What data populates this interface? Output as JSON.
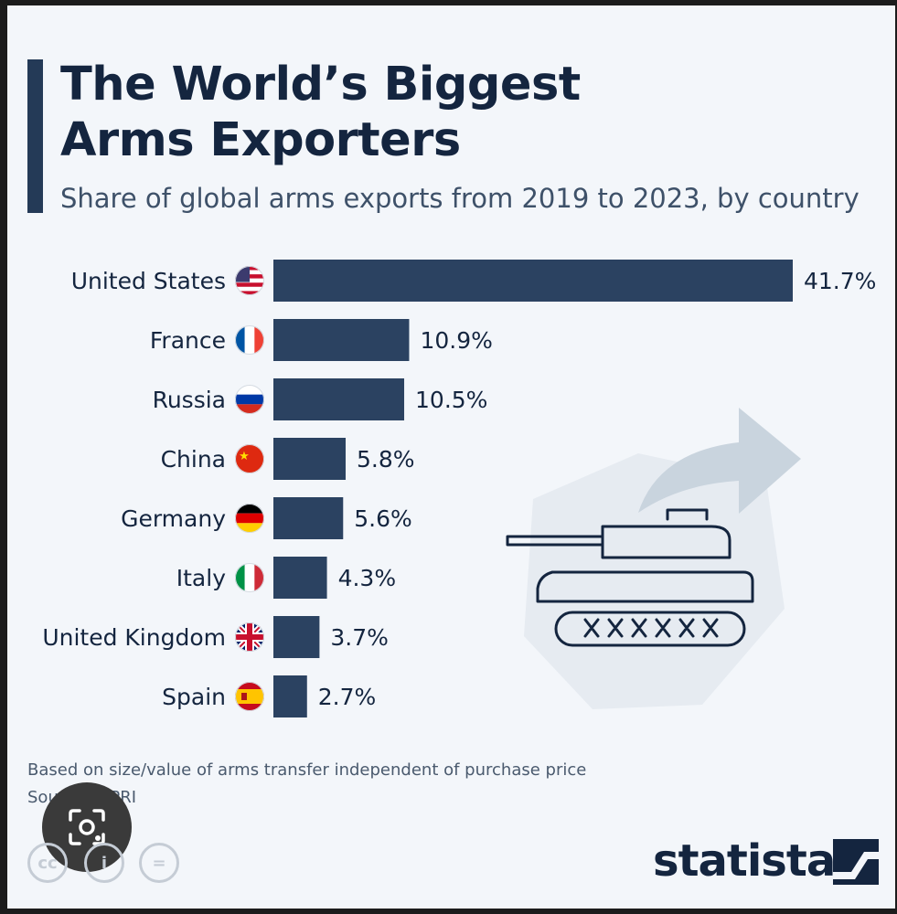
{
  "header": {
    "title_line1": "The World’s Biggest",
    "title_line2": "Arms Exporters",
    "subtitle": "Share of global arms exports from 2019 to 2023, by country"
  },
  "chart_data": {
    "type": "bar",
    "orientation": "horizontal",
    "title": "The World’s Biggest Arms Exporters",
    "subtitle": "Share of global arms exports from 2019 to 2023, by country",
    "categories": [
      "United States",
      "France",
      "Russia",
      "China",
      "Germany",
      "Italy",
      "United Kingdom",
      "Spain"
    ],
    "values": [
      41.7,
      10.9,
      10.5,
      5.8,
      5.6,
      4.3,
      3.7,
      2.7
    ],
    "value_labels": [
      "41.7%",
      "10.9%",
      "10.5%",
      "5.8%",
      "5.6%",
      "4.3%",
      "3.7%",
      "2.7%"
    ],
    "unit": "%",
    "xlim": [
      0,
      41.7
    ],
    "grid": false,
    "bar_color": "#2b4261"
  },
  "flags": [
    "us-flag-icon",
    "france-flag-icon",
    "russia-flag-icon",
    "china-flag-icon",
    "germany-flag-icon",
    "italy-flag-icon",
    "uk-flag-icon",
    "spain-flag-icon"
  ],
  "footer": {
    "note": "Based on size/value of arms transfer independent of purchase price",
    "source": "Source: SIPRI",
    "brand": "statista"
  },
  "colors": {
    "title": "#14253f",
    "bar": "#2b4261",
    "background": "#f3f6fa"
  }
}
